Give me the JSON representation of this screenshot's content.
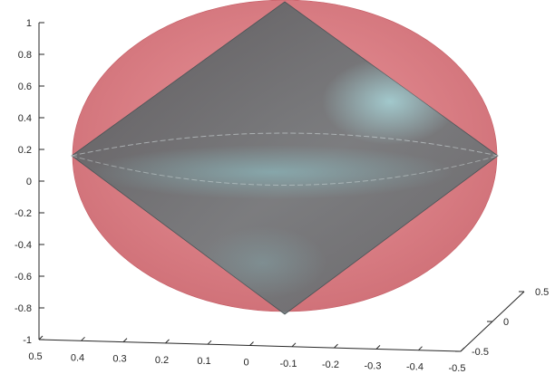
{
  "chart_data": {
    "type": "surface3d",
    "title": "",
    "xlabel": "",
    "ylabel": "",
    "zlabel": "",
    "axes": {
      "vertical": {
        "range": [
          -1,
          1
        ],
        "ticks": [
          1,
          0.8,
          0.6,
          0.4,
          0.2,
          0,
          -0.2,
          -0.4,
          -0.6,
          -0.8,
          -1
        ],
        "tick_labels": [
          "1",
          "0.8",
          "0.6",
          "0.4",
          "0.2",
          "0",
          "-0.2",
          "-0.4",
          "-0.6",
          "-0.8",
          "-1"
        ]
      },
      "front": {
        "range": [
          0.5,
          -0.5
        ],
        "ticks": [
          0.5,
          0.4,
          0.3,
          0.2,
          0.1,
          0,
          -0.1,
          -0.2,
          -0.3,
          -0.4,
          -0.5
        ],
        "tick_labels": [
          "0.5",
          "0.4",
          "0.3",
          "0.2",
          "0.1",
          "0",
          "-0.1",
          "-0.2",
          "-0.3",
          "-0.4",
          "-0.5"
        ]
      },
      "depth": {
        "range": [
          -0.5,
          0.5
        ],
        "ticks": [
          -0.5,
          0,
          0.5
        ],
        "tick_labels": [
          "-0.5",
          "0",
          "0.5"
        ]
      }
    },
    "grid": false,
    "series": [
      {
        "shape": "ellipsoid",
        "color": "#d9747c",
        "opacity": 0.9,
        "semi_axes": {
          "front": 0.5,
          "depth": 0.5,
          "vertical": 1
        }
      },
      {
        "shape": "octahedron",
        "color": "#5f6b6e",
        "highlight": "#7fb7bd",
        "opacity": 0.88,
        "vertices": {
          "top": 1,
          "bottom": -1,
          "front_extent": 0.5
        }
      }
    ]
  }
}
